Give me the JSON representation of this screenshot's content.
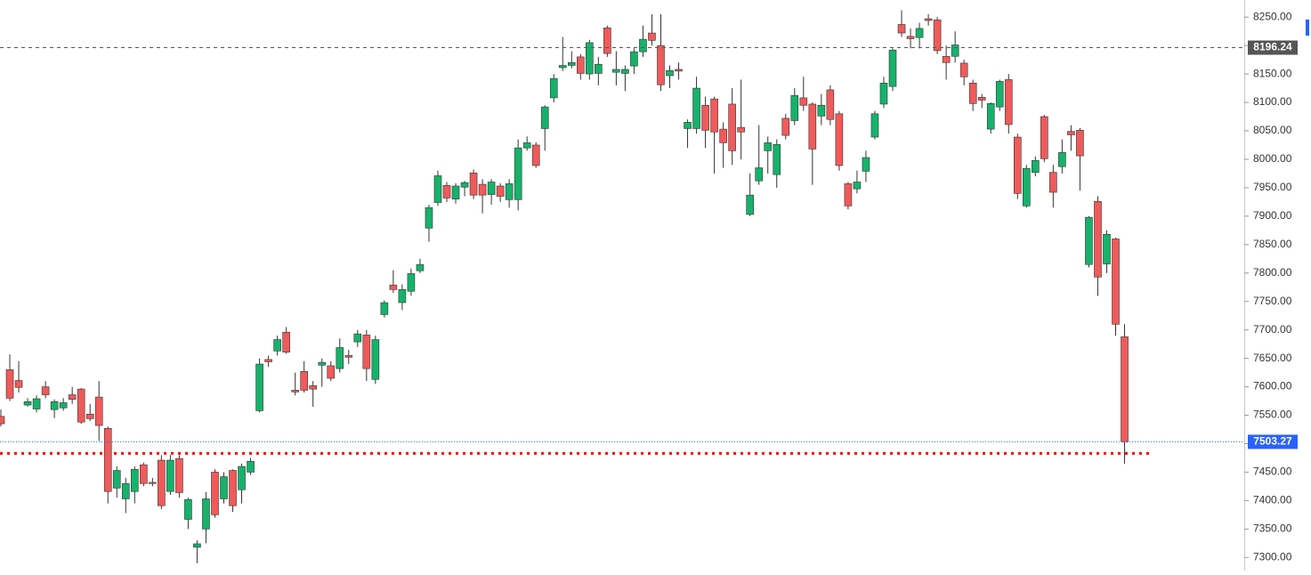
{
  "chart_data": {
    "type": "candlestick",
    "up_color": "#16b26b",
    "down_color": "#f05a5a",
    "outline_color": "#333333",
    "ylim": [
      7277,
      8280
    ],
    "yticks": [
      {
        "value": 7300,
        "label": "7300.00"
      },
      {
        "value": 7350,
        "label": "7350.00"
      },
      {
        "value": 7400,
        "label": "7400.00"
      },
      {
        "value": 7450,
        "label": "7450.00"
      },
      {
        "value": 7500,
        "label": "7500.00"
      },
      {
        "value": 7550,
        "label": "7550.00"
      },
      {
        "value": 7600,
        "label": "7600.00"
      },
      {
        "value": 7650,
        "label": "7650.00"
      },
      {
        "value": 7700,
        "label": "7700.00"
      },
      {
        "value": 7750,
        "label": "7750.00"
      },
      {
        "value": 7800,
        "label": "7800.00"
      },
      {
        "value": 7850,
        "label": "7850.00"
      },
      {
        "value": 7900,
        "label": "7900.00"
      },
      {
        "value": 7950,
        "label": "7950.00"
      },
      {
        "value": 8000,
        "label": "8000.00"
      },
      {
        "value": 8050,
        "label": "8050.00"
      },
      {
        "value": 8100,
        "label": "8100.00"
      },
      {
        "value": 8150,
        "label": "8150.00"
      },
      {
        "value": 8200,
        "label": "8200.00"
      },
      {
        "value": 8250,
        "label": "8250.00"
      }
    ],
    "price_lines": [
      {
        "value": 8196.24,
        "color": "#555555",
        "style": "dashed"
      },
      {
        "value": 7503.27,
        "color": "#2962ff",
        "style": "dotted"
      }
    ],
    "support_line": {
      "value": 7483,
      "color": "#ff0000"
    },
    "open": [
      7548,
      7630,
      7611,
      7568,
      7561,
      7600,
      7560,
      7563,
      7586,
      7596,
      7552,
      7582,
      7527,
      7422,
      7403,
      7416,
      7463,
      7432,
      7471,
      7416,
      7474,
      7367,
      7318,
      7350,
      7450,
      7403,
      7453,
      7419,
      7450,
      7558,
      7648,
      7663,
      7696,
      7594,
      7627,
      7602,
      7638,
      7637,
      7632,
      7655,
      7679,
      7691,
      7613,
      7727,
      7779,
      7748,
      7768,
      7804,
      7879,
      7924,
      7954,
      7930,
      7951,
      7976,
      7956,
      7938,
      7953,
      7929,
      7929,
      8020,
      8025,
      8054,
      8108,
      8161,
      8165,
      8180,
      8150,
      8151,
      8231,
      8153,
      8151,
      8164,
      8189,
      8222,
      8200,
      8147,
      8158,
      8054,
      8054,
      8095,
      8106,
      8053,
      8097,
      8056,
      7903,
      7962,
      8015,
      7973,
      8072,
      8068,
      8108,
      8097,
      8076,
      8122,
      8080,
      7957,
      7948,
      7979,
      8039,
      8097,
      8128,
      8237,
      8216,
      8214,
      8247,
      8245,
      8181,
      8181,
      8169,
      8134,
      8109,
      8053,
      8092,
      8140,
      8039,
      7918,
      7977,
      8075,
      7977,
      7987,
      8049,
      8051,
      7815,
      7926,
      7816,
      7860,
      7688
    ],
    "high": [
      7560,
      7657,
      7645,
      7580,
      7585,
      7610,
      7578,
      7580,
      7600,
      7598,
      7570,
      7610,
      7530,
      7460,
      7440,
      7460,
      7467,
      7440,
      7480,
      7480,
      7480,
      7405,
      7330,
      7415,
      7455,
      7450,
      7455,
      7465,
      7475,
      7650,
      7655,
      7690,
      7705,
      7625,
      7645,
      7610,
      7650,
      7645,
      7685,
      7665,
      7700,
      7700,
      7690,
      7752,
      7805,
      7780,
      7808,
      7825,
      7920,
      7980,
      7960,
      7958,
      7962,
      7982,
      7965,
      7965,
      7958,
      7965,
      8035,
      8040,
      8030,
      8095,
      8150,
      8215,
      8190,
      8185,
      8210,
      8180,
      8235,
      8190,
      8165,
      8195,
      8235,
      8255,
      8255,
      8165,
      8170,
      8070,
      8145,
      8110,
      8110,
      8065,
      8125,
      8140,
      7975,
      8060,
      8040,
      8035,
      8080,
      8125,
      8145,
      8100,
      8115,
      8130,
      8085,
      7960,
      7980,
      8015,
      8085,
      8145,
      8195,
      8262,
      8230,
      8240,
      8255,
      8250,
      8200,
      8225,
      8175,
      8140,
      8115,
      8100,
      8140,
      8150,
      8045,
      7990,
      8005,
      8078,
      7990,
      8035,
      8060,
      8055,
      7900,
      7935,
      7875,
      7862,
      7710
    ],
    "low": [
      7530,
      7575,
      7590,
      7565,
      7555,
      7580,
      7545,
      7558,
      7570,
      7535,
      7540,
      7505,
      7395,
      7405,
      7378,
      7395,
      7425,
      7425,
      7385,
      7410,
      7405,
      7350,
      7290,
      7325,
      7370,
      7395,
      7380,
      7395,
      7445,
      7555,
      7635,
      7655,
      7658,
      7585,
      7590,
      7565,
      7600,
      7610,
      7625,
      7640,
      7670,
      7610,
      7605,
      7722,
      7765,
      7735,
      7760,
      7800,
      7855,
      7918,
      7925,
      7922,
      7935,
      7930,
      7905,
      7920,
      7925,
      7915,
      7910,
      8015,
      7985,
      8015,
      8100,
      8155,
      8160,
      8140,
      8140,
      8130,
      8180,
      8130,
      8120,
      8150,
      8180,
      8200,
      8120,
      8125,
      8140,
      8020,
      8045,
      8020,
      7975,
      7985,
      7990,
      8000,
      7900,
      7955,
      7975,
      7950,
      8035,
      8060,
      8085,
      7955,
      8060,
      8060,
      7980,
      7912,
      7940,
      7960,
      8035,
      8090,
      8120,
      8215,
      8195,
      8195,
      8235,
      8185,
      8140,
      8170,
      8130,
      8085,
      8090,
      8045,
      8085,
      8045,
      7930,
      7915,
      7970,
      7995,
      7915,
      7975,
      8015,
      7945,
      7810,
      7760,
      7800,
      7690,
      7465
    ],
    "close": [
      7535,
      7580,
      7599,
      7574,
      7579,
      7586,
      7574,
      7572,
      7578,
      7538,
      7544,
      7532,
      7416,
      7453,
      7430,
      7455,
      7430,
      7430,
      7391,
      7471,
      7414,
      7402,
      7324,
      7403,
      7375,
      7442,
      7391,
      7460,
      7469,
      7640,
      7644,
      7683,
      7661,
      7591,
      7594,
      7596,
      7643,
      7615,
      7669,
      7652,
      7693,
      7632,
      7683,
      7748,
      7771,
      7771,
      7799,
      7815,
      7915,
      7971,
      7932,
      7953,
      7959,
      7937,
      7937,
      7960,
      7935,
      7957,
      8020,
      8029,
      7989,
      8092,
      8142,
      8165,
      8170,
      8151,
      8205,
      8167,
      8186,
      8158,
      8158,
      8189,
      8211,
      8209,
      8131,
      8156,
      8155,
      8065,
      8125,
      8051,
      8048,
      8029,
      8015,
      8048,
      7937,
      7985,
      8029,
      8026,
      8042,
      8112,
      8095,
      8018,
      8095,
      8070,
      7989,
      7918,
      7960,
      8003,
      8080,
      8134,
      8192,
      8222,
      8212,
      8230,
      8244,
      8191,
      8170,
      8201,
      8145,
      8098,
      8104,
      8098,
      8137,
      8061,
      7940,
      7984,
      7998,
      8001,
      7942,
      8012,
      8043,
      8006,
      7898,
      7793,
      7868,
      7710,
      7503.27
    ]
  }
}
